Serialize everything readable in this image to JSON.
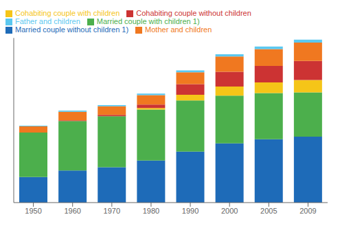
{
  "chart_data": {
    "type": "bar",
    "stacked": true,
    "categories": [
      "1950",
      "1960",
      "1970",
      "1980",
      "1990",
      "2000",
      "2005",
      "2009"
    ],
    "series": [
      {
        "name": "Married couple without children 1)",
        "color": "#1e6bb8",
        "values": [
          155,
          195,
          215,
          255,
          310,
          360,
          385,
          400
        ]
      },
      {
        "name": "Married couple with children 1)",
        "color": "#4caf4c",
        "values": [
          270,
          300,
          310,
          310,
          310,
          290,
          280,
          270
        ]
      },
      {
        "name": "Cohabiting couple with children",
        "color": "#f5c518",
        "values": [
          0,
          0,
          0,
          10,
          35,
          55,
          65,
          75
        ]
      },
      {
        "name": "Cohabiting couple without children",
        "color": "#cc3333",
        "values": [
          0,
          5,
          8,
          20,
          65,
          90,
          100,
          115
        ]
      },
      {
        "name": "Mother and children",
        "color": "#f07820",
        "values": [
          38,
          52,
          52,
          58,
          72,
          92,
          102,
          112
        ]
      },
      {
        "name": "Father and children",
        "color": "#5bc8f0",
        "values": [
          4,
          7,
          7,
          9,
          11,
          14,
          16,
          18
        ]
      }
    ],
    "ylim": [
      0,
      1000
    ],
    "yticks": [],
    "tick_labels": "x",
    "grid": false,
    "legend": "upper left"
  }
}
